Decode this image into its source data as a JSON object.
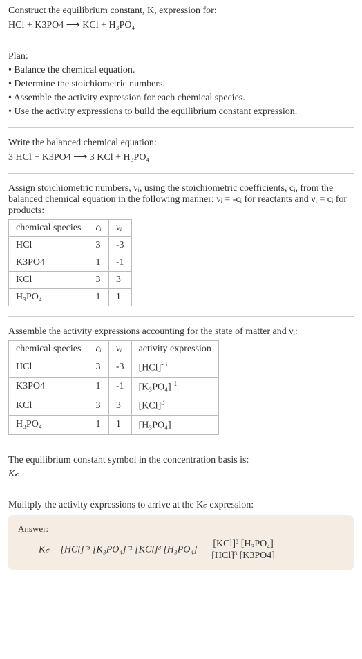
{
  "intro": {
    "line1": "Construct the equilibrium constant, K, expression for:",
    "reaction": "HCl + K3PO4 ⟶ KCl + H₃PO₄"
  },
  "plan": {
    "header": "Plan:",
    "items": [
      "• Balance the chemical equation.",
      "• Determine the stoichiometric numbers.",
      "• Assemble the activity expression for each chemical species.",
      "• Use the activity expressions to build the equilibrium constant expression."
    ]
  },
  "balanced": {
    "header": "Write the balanced chemical equation:",
    "reaction": "3 HCl + K3PO4 ⟶ 3 KCl + H₃PO₄"
  },
  "stoich": {
    "text": "Assign stoichiometric numbers, νᵢ, using the stoichiometric coefficients, cᵢ, from the balanced chemical equation in the following manner: νᵢ = -cᵢ for reactants and νᵢ = cᵢ for products:",
    "table": {
      "headers": [
        "chemical species",
        "cᵢ",
        "νᵢ"
      ],
      "rows": [
        [
          "HCl",
          "3",
          "-3"
        ],
        [
          "K3PO4",
          "1",
          "-1"
        ],
        [
          "KCl",
          "3",
          "3"
        ],
        [
          "H₃PO₄",
          "1",
          "1"
        ]
      ]
    }
  },
  "activity": {
    "text": "Assemble the activity expressions accounting for the state of matter and νᵢ:",
    "table": {
      "headers": [
        "chemical species",
        "cᵢ",
        "νᵢ",
        "activity expression"
      ],
      "rows": [
        {
          "sp": "HCl",
          "c": "3",
          "v": "-3",
          "expr_base": "[HCl]",
          "expr_exp": "-3"
        },
        {
          "sp": "K3PO4",
          "c": "1",
          "v": "-1",
          "expr_base": "[K₃PO₄]",
          "expr_exp": "-1"
        },
        {
          "sp": "KCl",
          "c": "3",
          "v": "3",
          "expr_base": "[KCl]",
          "expr_exp": "3"
        },
        {
          "sp": "H₃PO₄",
          "c": "1",
          "v": "1",
          "expr_base": "[H₃PO₄]",
          "expr_exp": ""
        }
      ]
    }
  },
  "symbol": {
    "text": "The equilibrium constant symbol in the concentration basis is:",
    "sym": "K𝒸"
  },
  "multiply": {
    "text": "Mulitply the activity expressions to arrive at the K𝒸 expression:"
  },
  "answer": {
    "label": "Answer:",
    "lhs": "K𝒸 = [HCl]⁻³ [K₃PO₄]⁻¹ [KCl]³ [H₃PO₄] =",
    "num": "[KCl]³ [H₃PO₄]",
    "den": "[HCl]³ [K3PO4]"
  },
  "colors": {
    "border": "#bbbbbb",
    "hr": "#cccccc",
    "answer_bg": "#f5ede3",
    "text": "#333333"
  }
}
